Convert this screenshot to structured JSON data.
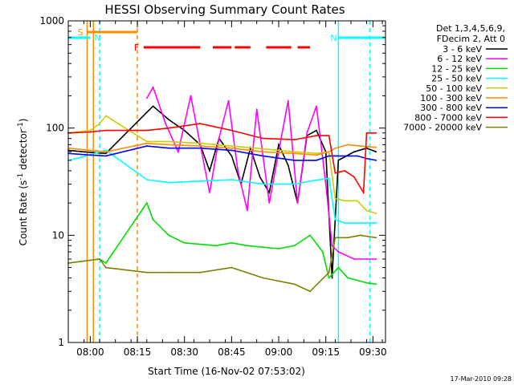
{
  "chart_data": {
    "type": "line",
    "title": "HESSI Observing Summary Count Rates",
    "xlabel": "Start Time (16-Nov-02 07:53:02)",
    "ylabel_main": "Count Rate (s",
    "ylabel_sup1": "-1",
    "ylabel_mid": " detector",
    "ylabel_sup2": "-1",
    "ylabel_end": ")",
    "yscale": "log",
    "ylim": [
      1,
      1000
    ],
    "xlim": [
      "07:53",
      "09:34"
    ],
    "y_ticks": [
      {
        "value": 1,
        "label": "1"
      },
      {
        "value": 10,
        "label": "10"
      },
      {
        "value": 100,
        "label": "100"
      },
      {
        "value": 1000,
        "label": "1000"
      }
    ],
    "x_ticks": [
      {
        "time": "08:00",
        "label": "08:00"
      },
      {
        "time": "08:15",
        "label": "08:15"
      },
      {
        "time": "08:30",
        "label": "08:30"
      },
      {
        "time": "08:45",
        "label": "08:45"
      },
      {
        "time": "09:00",
        "label": "09:00"
      },
      {
        "time": "09:15",
        "label": "09:15"
      },
      {
        "time": "09:30",
        "label": "09:30"
      }
    ],
    "legend_header": [
      "Det 1,3,4,5,6,9,",
      "FDecim 2, Att 0"
    ],
    "legend_placement": "top-right outside",
    "series": [
      {
        "name": "3 - 6 keV",
        "color": "#000000",
        "x": [
          "07:53",
          "07:58",
          "08:05",
          "08:18",
          "08:20",
          "08:25",
          "08:30",
          "08:35",
          "08:38",
          "08:41",
          "08:45",
          "08:48",
          "08:51",
          "08:54",
          "08:57",
          "09:00",
          "09:03",
          "09:06",
          "09:09",
          "09:12",
          "09:15",
          "09:17",
          "09:19",
          "09:24",
          "09:28",
          "09:31"
        ],
        "values": [
          62,
          60,
          58,
          140,
          160,
          120,
          95,
          70,
          40,
          80,
          55,
          30,
          65,
          35,
          25,
          70,
          45,
          20,
          85,
          95,
          60,
          4,
          50,
          60,
          65,
          60
        ]
      },
      {
        "name": "6 - 12 keV",
        "color": "#ff00ff",
        "x": [
          "08:18",
          "08:20",
          "08:24",
          "08:28",
          "08:32",
          "08:35",
          "08:38",
          "08:41",
          "08:44",
          "08:47",
          "08:50",
          "08:53",
          "08:57",
          "09:00",
          "09:03",
          "09:06",
          "09:09",
          "09:12",
          "09:15",
          "09:17",
          "09:19",
          "09:24",
          "09:28",
          "09:31"
        ],
        "values": [
          190,
          240,
          110,
          60,
          200,
          70,
          25,
          80,
          180,
          40,
          17,
          150,
          20,
          60,
          180,
          20,
          90,
          160,
          30,
          8,
          7,
          6,
          6,
          6
        ]
      },
      {
        "name": "12 - 25 keV",
        "color": "#00dd00",
        "x": [
          "07:53",
          "08:03",
          "08:05",
          "08:18",
          "08:20",
          "08:25",
          "08:30",
          "08:40",
          "08:45",
          "08:50",
          "09:00",
          "09:05",
          "09:10",
          "09:14",
          "09:16",
          "09:19",
          "09:22",
          "09:25",
          "09:28",
          "09:31"
        ],
        "values": [
          5.5,
          6,
          5.5,
          20,
          14,
          10,
          8.5,
          8,
          8.5,
          8,
          7.5,
          8,
          10,
          7,
          4,
          5,
          4,
          3.8,
          3.6,
          3.5
        ]
      },
      {
        "name": "25 - 50 keV",
        "color": "#00ffff",
        "x": [
          "07:53",
          "07:58",
          "08:03",
          "08:05",
          "08:18",
          "08:25",
          "08:35",
          "08:45",
          "08:55",
          "09:05",
          "09:10",
          "09:16",
          "09:18",
          "09:21",
          "09:25",
          "09:28",
          "09:31"
        ],
        "values": [
          50,
          54,
          60,
          62,
          33,
          31,
          32,
          33,
          30,
          30,
          32,
          34,
          14,
          13,
          13,
          13,
          13
        ]
      },
      {
        "name": "50 - 100 keV",
        "color": "#cccc00",
        "x": [
          "07:53",
          "08:00",
          "08:03",
          "08:05",
          "08:18",
          "08:25",
          "08:35",
          "08:45",
          "08:55",
          "09:05",
          "09:12",
          "09:16",
          "09:18",
          "09:21",
          "09:25",
          "09:28",
          "09:31"
        ],
        "values": [
          90,
          95,
          110,
          130,
          75,
          75,
          72,
          68,
          64,
          60,
          58,
          60,
          22,
          21,
          21,
          17,
          16
        ]
      },
      {
        "name": "100 - 300 keV",
        "color": "#ff8c00",
        "x": [
          "07:53",
          "08:00",
          "08:05",
          "08:18",
          "08:25",
          "08:35",
          "08:45",
          "08:55",
          "09:05",
          "09:12",
          "09:16",
          "09:18",
          "09:22",
          "09:26",
          "09:31"
        ],
        "values": [
          65,
          62,
          60,
          72,
          70,
          68,
          65,
          60,
          58,
          56,
          60,
          65,
          70,
          68,
          66
        ]
      },
      {
        "name": "300 - 800 keV",
        "color": "#0000ff",
        "x": [
          "07:53",
          "08:00",
          "08:05",
          "08:18",
          "08:25",
          "08:35",
          "08:45",
          "08:55",
          "09:05",
          "09:12",
          "09:16",
          "09:18",
          "09:22",
          "09:25",
          "09:28",
          "09:31"
        ],
        "values": [
          58,
          56,
          55,
          68,
          65,
          65,
          62,
          55,
          50,
          50,
          55,
          55,
          55,
          55,
          52,
          50
        ]
      },
      {
        "name": "800 - 7000 keV",
        "color": "#ff0000",
        "x": [
          "07:53",
          "08:00",
          "08:05",
          "08:18",
          "08:25",
          "08:35",
          "08:45",
          "08:55",
          "09:05",
          "09:12",
          "09:16",
          "09:18",
          "09:21",
          "09:24",
          "09:27",
          "09:28",
          "09:31"
        ],
        "values": [
          90,
          92,
          95,
          95,
          100,
          110,
          95,
          80,
          78,
          85,
          85,
          38,
          40,
          35,
          25,
          90,
          90
        ]
      },
      {
        "name": "7000 - 20000 keV",
        "color": "#808000",
        "x": [
          "07:53",
          "08:03",
          "08:05",
          "08:18",
          "08:25",
          "08:35",
          "08:45",
          "08:55",
          "09:05",
          "09:10",
          "09:16",
          "09:18",
          "09:22",
          "09:26",
          "09:31"
        ],
        "values": [
          5.5,
          6,
          5,
          4.5,
          4.5,
          4.5,
          5,
          4,
          3.5,
          3,
          4.5,
          9.5,
          9.5,
          10,
          9.5
        ]
      }
    ],
    "markers": [
      {
        "label": "S",
        "color": "#ff8c00",
        "start": "07:59",
        "end": "08:15"
      },
      {
        "label": "N",
        "color": "#00ffff",
        "start": "07:53",
        "end": "08:00"
      },
      {
        "label": "N",
        "color": "#00ffff",
        "start": "09:19",
        "end": "09:34"
      },
      {
        "label": "F",
        "color": "#ff0000",
        "segments": [
          [
            "08:17",
            "08:35"
          ],
          [
            "08:39",
            "08:45"
          ],
          [
            "08:46",
            "08:51"
          ],
          [
            "08:56",
            "09:04"
          ],
          [
            "09:06",
            "09:10"
          ]
        ]
      }
    ],
    "vertical_lines": [
      {
        "time": "07:59",
        "color": "#ff8c00",
        "style": "solid"
      },
      {
        "time": "08:01",
        "color": "#ff8c00",
        "style": "solid"
      },
      {
        "time": "08:03",
        "color": "#00ffff",
        "style": "dashed"
      },
      {
        "time": "08:15",
        "color": "#ff8c00",
        "style": "dashed"
      },
      {
        "time": "09:19",
        "color": "#00ffff",
        "style": "solid"
      },
      {
        "time": "09:29",
        "color": "#00ffff",
        "style": "dashed"
      }
    ],
    "footer": "17-Mar-2010 09:28"
  }
}
